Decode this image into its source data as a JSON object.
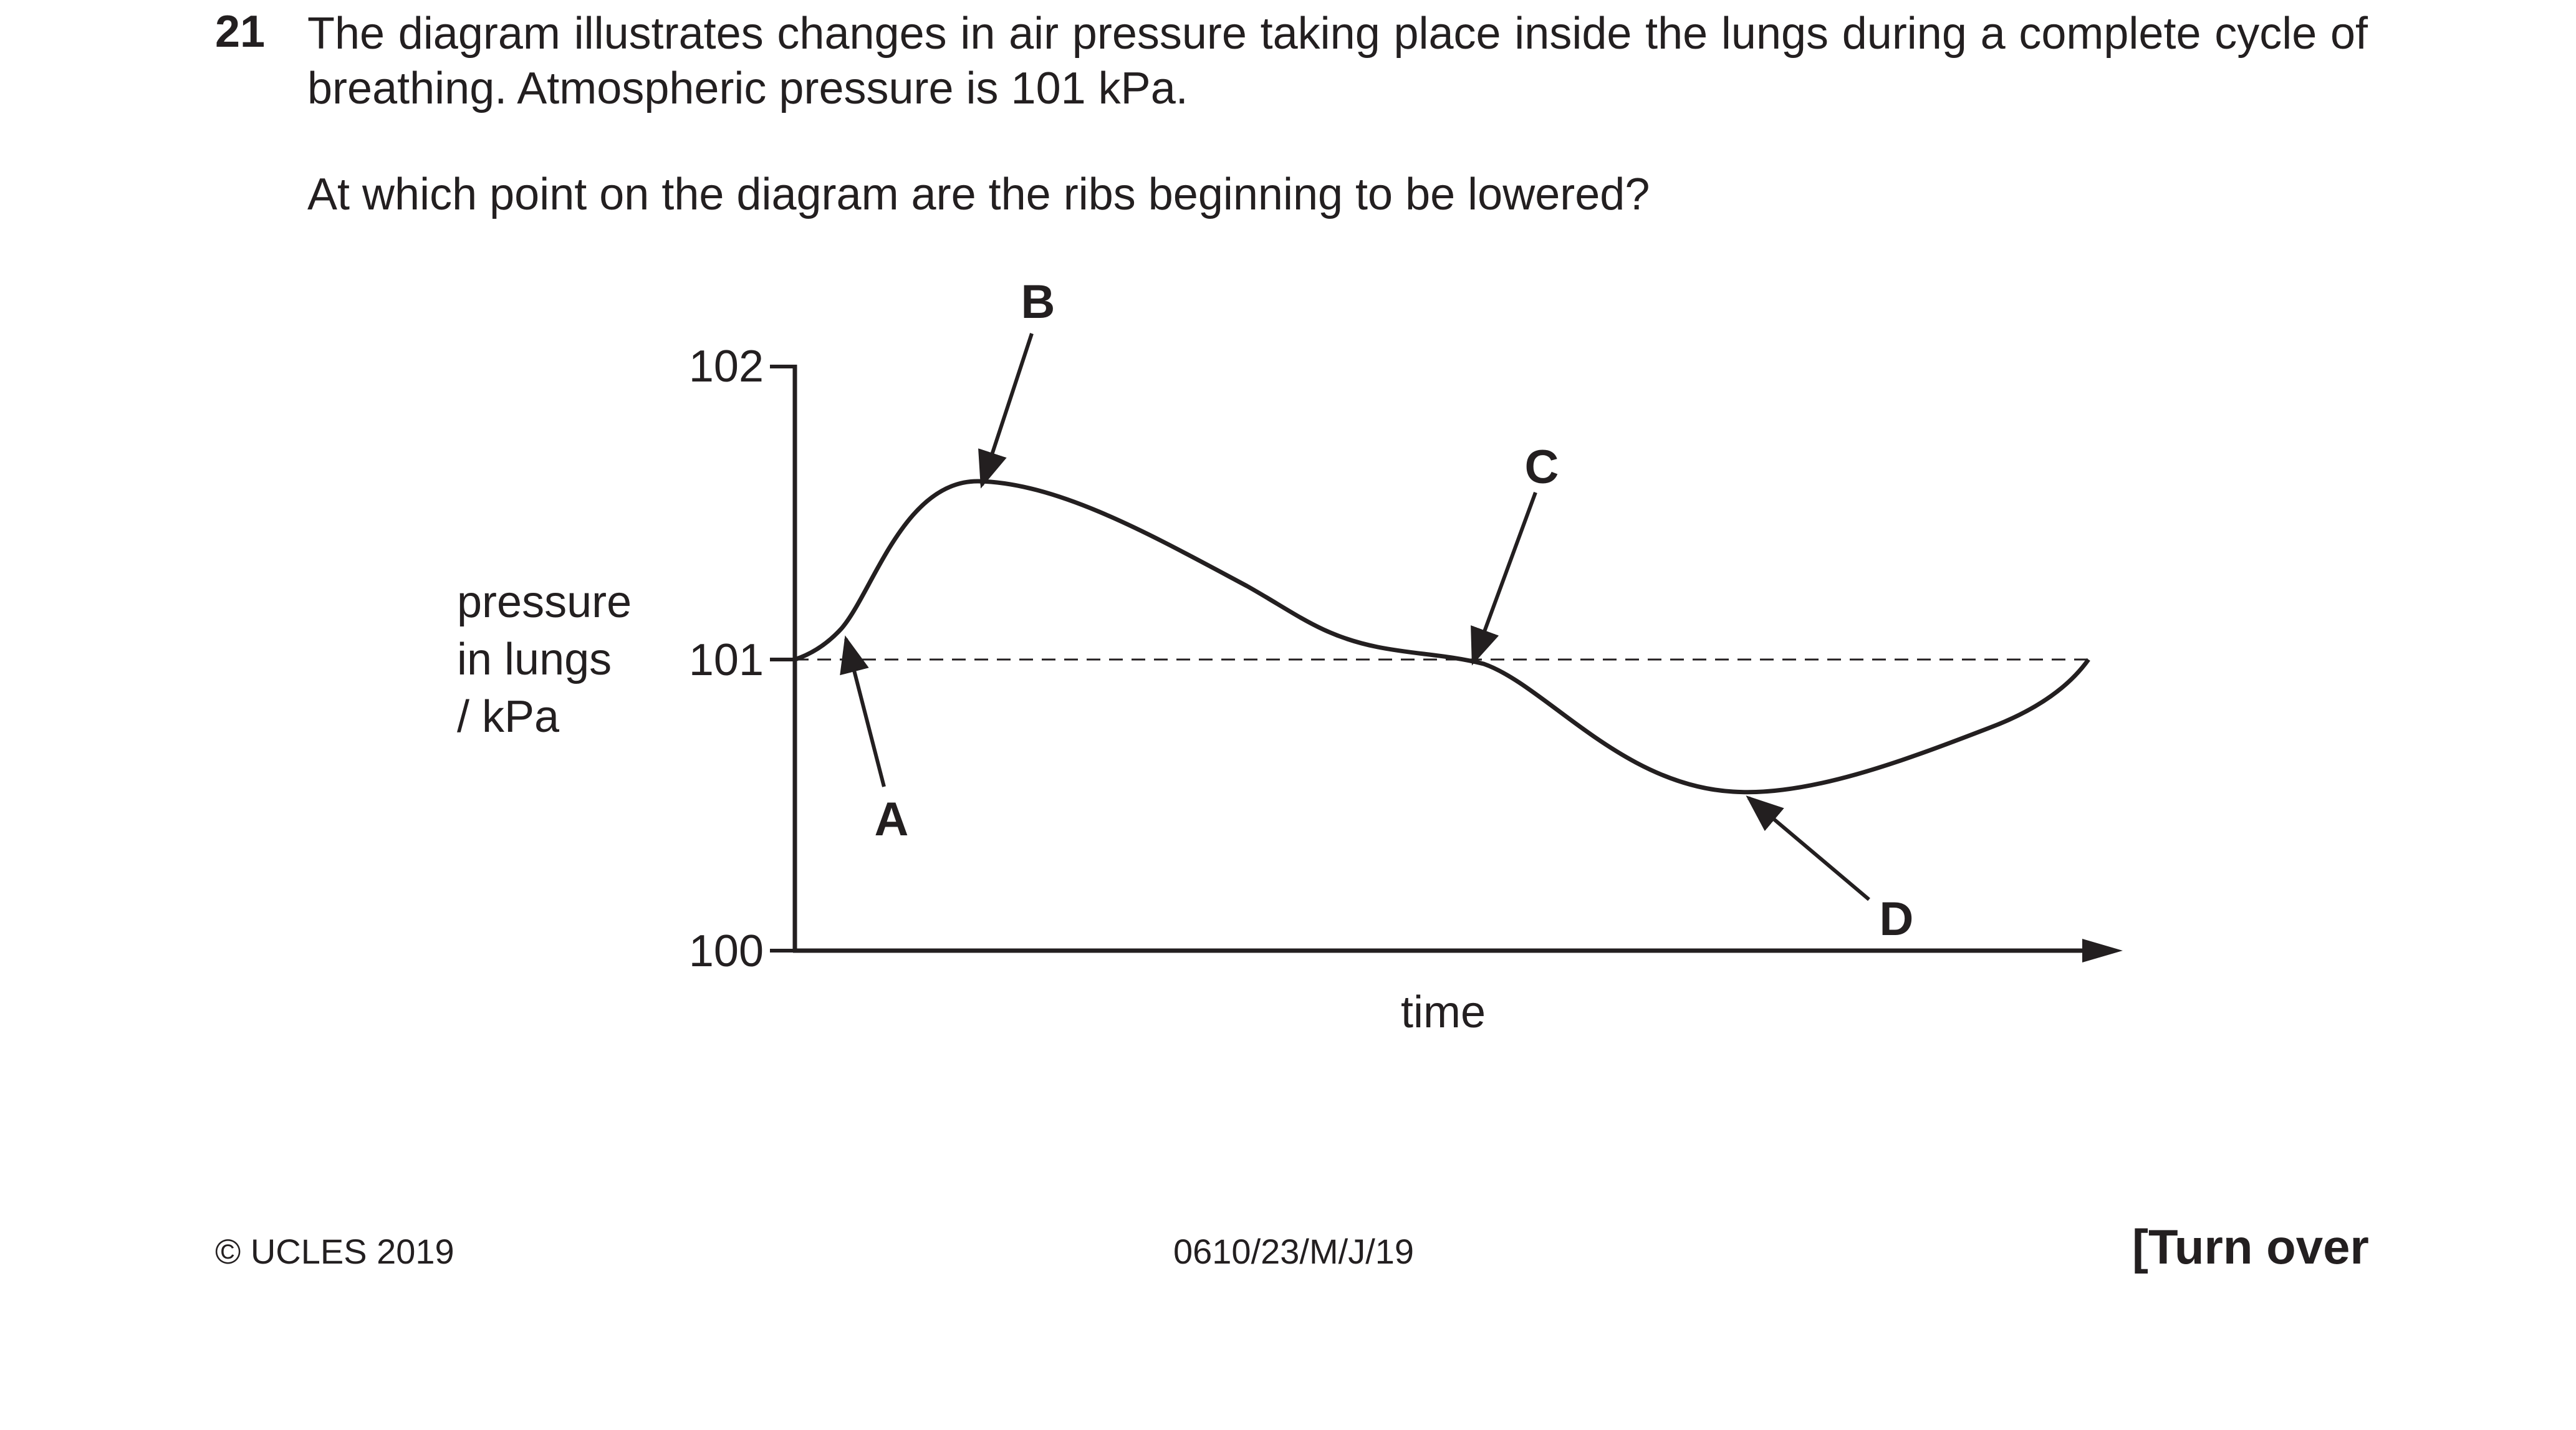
{
  "question": {
    "number": "21",
    "stem": "The diagram illustrates changes in air pressure taking place inside the lungs during a complete cycle of breathing. Atmospheric pressure is 101 kPa.",
    "prompt": "At which point on the diagram are the ribs beginning to be lowered?"
  },
  "graph": {
    "ylabel_lines": [
      "pressure",
      "in lungs",
      "/ kPa"
    ],
    "xlabel": "time",
    "y_ticks": [
      "102",
      "101",
      "100"
    ],
    "ylim": [
      100,
      102
    ],
    "reference_line": 101,
    "curve_points": [
      {
        "t": 0,
        "p": 101.0
      },
      {
        "t": 0.036,
        "p": 101.1
      },
      {
        "t": 0.14,
        "p": 101.6
      },
      {
        "t": 0.36,
        "p": 101.18
      },
      {
        "t": 0.52,
        "p": 101.0
      },
      {
        "t": 0.72,
        "p": 100.54
      },
      {
        "t": 1.0,
        "p": 101.0
      }
    ],
    "points": [
      {
        "label": "A",
        "at_t": 0.036
      },
      {
        "label": "B",
        "at_t": 0.14
      },
      {
        "label": "C",
        "at_t": 0.52
      },
      {
        "label": "D",
        "at_t": 0.72
      }
    ]
  },
  "footer": {
    "copyright": "© UCLES 2019",
    "code": "0610/23/M/J/19",
    "turn_over": "[Turn over"
  }
}
